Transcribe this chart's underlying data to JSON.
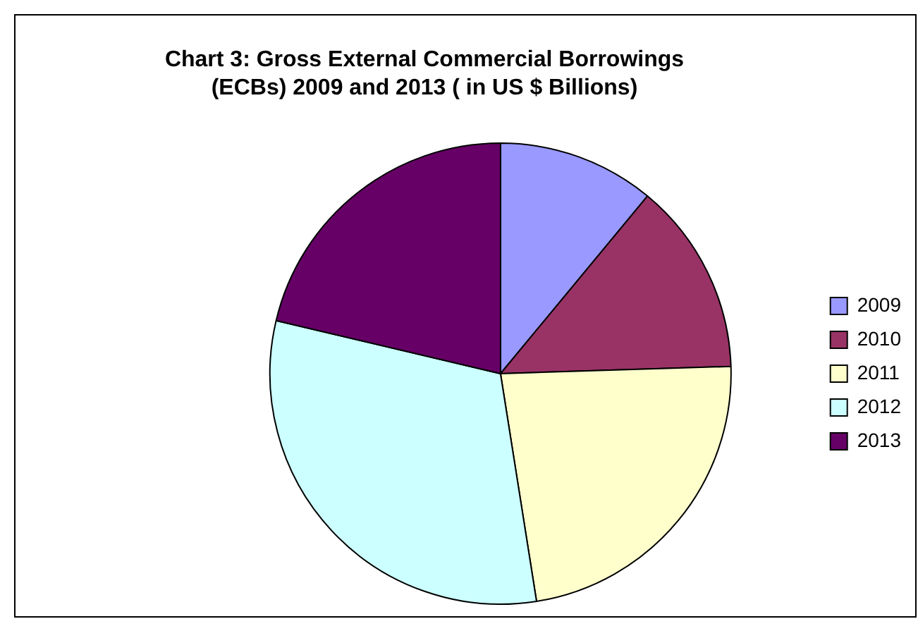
{
  "chart_data": {
    "type": "pie",
    "title": "Chart 3: Gross External Commercial Borrowings (ECBs) 2009 and 2013 ( in US $ Billions)",
    "categories": [
      "2009",
      "2010",
      "2011",
      "2012",
      "2013"
    ],
    "values": [
      11,
      13.5,
      23,
      31.2,
      21.3
    ],
    "colors": [
      "#9999ff",
      "#993366",
      "#ffffcc",
      "#ccffff",
      "#660066"
    ],
    "legend": "right"
  }
}
